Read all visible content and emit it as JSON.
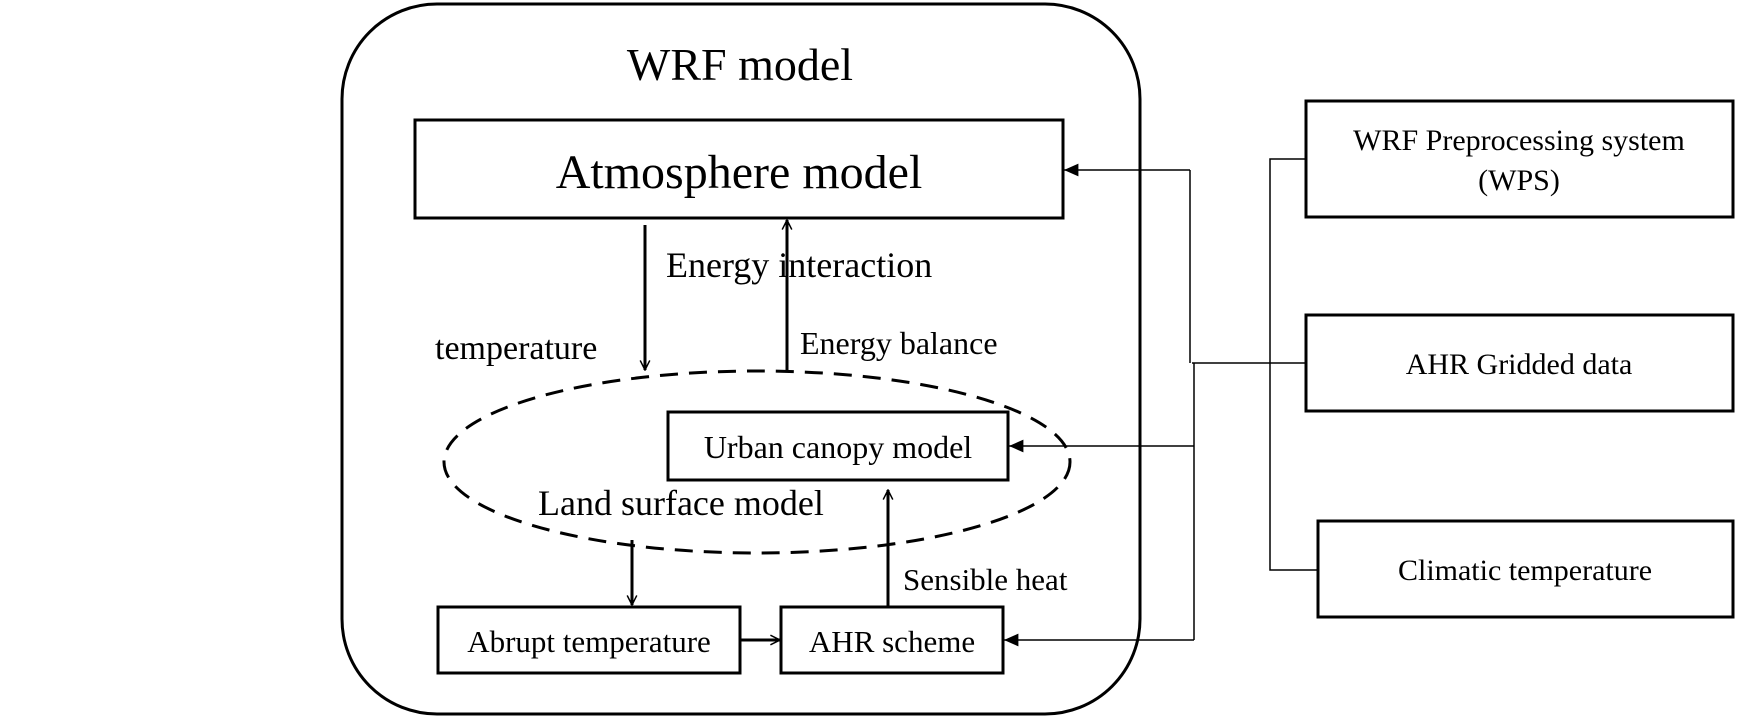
{
  "diagram": {
    "container_title": "WRF model",
    "atmosphere_box": "Atmosphere model",
    "energy_interaction": "Energy interaction",
    "temperature_label": "temperature",
    "energy_balance_label": "Energy balance",
    "urban_canopy_box": "Urban canopy model",
    "land_surface_label": "Land surface model",
    "sensible_heat_label": "Sensible heat",
    "abrupt_temperature_box": "Abrupt temperature",
    "ahr_scheme_box": "AHR scheme",
    "wps_box_line1": "WRF Preprocessing system",
    "wps_box_line2": "(WPS)",
    "ahr_gridded_box": "AHR Gridded data",
    "climatic_temperature_box": "Climatic temperature"
  }
}
